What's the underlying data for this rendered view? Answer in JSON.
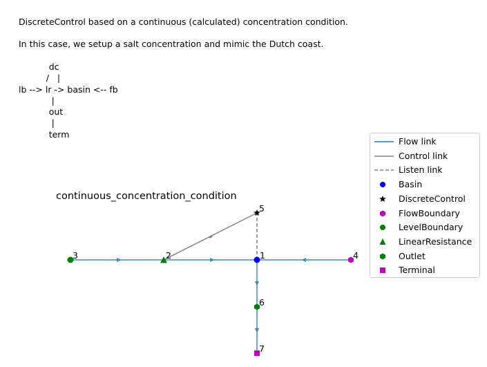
{
  "description": {
    "line1": "DiscreteControl based on a continuous (calculated) concentration condition.",
    "line2": "In this case, we setup a salt concentration and mimic the Dutch coast."
  },
  "ascii_diagram": "           dc\n          /   |\nlb --> lr -> basin <-- fb\n            |\n           out\n            |\n           term",
  "diagram": {
    "title": "continuous_concentration_condition",
    "nodes": [
      {
        "id": "1",
        "type": "Basin"
      },
      {
        "id": "2",
        "type": "LinearResistance"
      },
      {
        "id": "3",
        "type": "LevelBoundary"
      },
      {
        "id": "4",
        "type": "FlowBoundary"
      },
      {
        "id": "5",
        "type": "DiscreteControl"
      },
      {
        "id": "6",
        "type": "Outlet"
      },
      {
        "id": "7",
        "type": "Terminal"
      }
    ],
    "links": [
      {
        "from": "3",
        "to": "2",
        "kind": "Flow link"
      },
      {
        "from": "2",
        "to": "1",
        "kind": "Flow link"
      },
      {
        "from": "4",
        "to": "1",
        "kind": "Flow link"
      },
      {
        "from": "1",
        "to": "6",
        "kind": "Flow link"
      },
      {
        "from": "6",
        "to": "7",
        "kind": "Flow link"
      },
      {
        "from": "5",
        "to": "2",
        "kind": "Control link"
      },
      {
        "from": "1",
        "to": "5",
        "kind": "Listen link"
      }
    ]
  },
  "legend": {
    "items": [
      {
        "label": "Flow link",
        "symbol": "line",
        "color": "#1f77b4"
      },
      {
        "label": "Control link",
        "symbol": "line",
        "color": "#808080"
      },
      {
        "label": "Listen link",
        "symbol": "dashed",
        "color": "#808080"
      },
      {
        "label": "Basin",
        "symbol": "circle",
        "color": "#0000ff"
      },
      {
        "label": "DiscreteControl",
        "symbol": "star",
        "color": "#000000"
      },
      {
        "label": "FlowBoundary",
        "symbol": "hexagon",
        "color": "#bf00bf"
      },
      {
        "label": "LevelBoundary",
        "symbol": "circle",
        "color": "#008000"
      },
      {
        "label": "LinearResistance",
        "symbol": "triangle",
        "color": "#008000"
      },
      {
        "label": "Outlet",
        "symbol": "hexagon",
        "color": "#008000"
      },
      {
        "label": "Terminal",
        "symbol": "square",
        "color": "#bf00bf"
      }
    ]
  },
  "colors": {
    "flow": "#3a8fb7",
    "control": "#808080",
    "basin": "#0000ff",
    "discrete_control": "#000000",
    "flow_boundary": "#bf00bf",
    "level_boundary": "#008000",
    "linear_resistance": "#008000",
    "outlet": "#008000",
    "terminal": "#bf00bf"
  }
}
